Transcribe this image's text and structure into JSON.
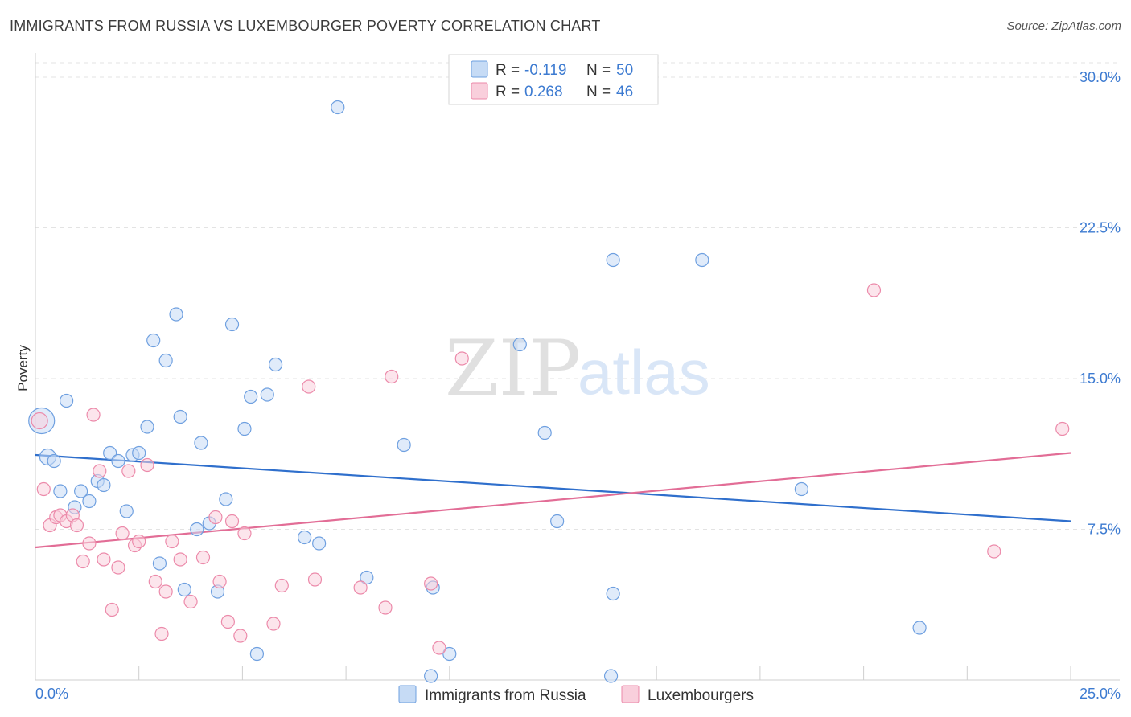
{
  "title": "IMMIGRANTS FROM RUSSIA VS LUXEMBOURGER POVERTY CORRELATION CHART",
  "source": "Source: ZipAtlas.com",
  "watermark": {
    "zip": "ZIP",
    "atlas": "atlas"
  },
  "legend": {
    "r_label": "R =",
    "n_label": "N =",
    "rows": [
      {
        "r": "-0.119",
        "n": "50",
        "color": "#a9c8f0"
      },
      {
        "r": "0.268",
        "n": "46",
        "color": "#f7b9cb"
      }
    ]
  },
  "bottom_legend": [
    {
      "label": "Immigrants from Russia",
      "color": "#a9c8f0"
    },
    {
      "label": "Luxembourgers",
      "color": "#f7b9cb"
    }
  ],
  "chart_data": {
    "type": "scatter",
    "title": "IMMIGRANTS FROM RUSSIA VS LUXEMBOURGER POVERTY CORRELATION CHART",
    "xlabel": "",
    "ylabel": "Poverty",
    "xlim": [
      0,
      25
    ],
    "ylim": [
      0,
      30.5
    ],
    "x_tick_labels": [
      "0.0%",
      "25.0%"
    ],
    "y_ticks": [
      7.5,
      15.0,
      22.5,
      30.0
    ],
    "y_tick_labels": [
      "7.5%",
      "15.0%",
      "22.5%",
      "30.0%"
    ],
    "grid": true,
    "legend_position": "top-center",
    "series": [
      {
        "name": "Immigrants from Russia",
        "color": "#6fa0e0",
        "fill": "#c6dbf5",
        "trend": {
          "x": [
            0,
            25
          ],
          "y": [
            11.2,
            7.9
          ],
          "color": "#2f6fcc"
        },
        "points": [
          [
            0.15,
            12.9,
            16
          ],
          [
            0.3,
            11.1,
            10
          ],
          [
            0.45,
            10.9,
            8
          ],
          [
            0.75,
            13.9,
            8
          ],
          [
            0.6,
            9.4,
            8
          ],
          [
            0.95,
            8.6,
            8
          ],
          [
            1.1,
            9.4,
            8
          ],
          [
            1.3,
            8.9,
            8
          ],
          [
            1.5,
            9.9,
            8
          ],
          [
            1.65,
            9.7,
            8
          ],
          [
            1.8,
            11.3,
            8
          ],
          [
            2.0,
            10.9,
            8
          ],
          [
            2.2,
            8.4,
            8
          ],
          [
            2.35,
            11.2,
            8
          ],
          [
            2.5,
            11.3,
            8
          ],
          [
            2.7,
            12.6,
            8
          ],
          [
            2.85,
            16.9,
            8
          ],
          [
            3.0,
            5.8,
            8
          ],
          [
            3.15,
            15.9,
            8
          ],
          [
            3.4,
            18.2,
            8
          ],
          [
            3.5,
            13.1,
            8
          ],
          [
            3.6,
            4.5,
            8
          ],
          [
            3.9,
            7.5,
            8
          ],
          [
            4.0,
            11.8,
            8
          ],
          [
            4.2,
            7.8,
            8
          ],
          [
            4.4,
            4.4,
            8
          ],
          [
            4.6,
            9.0,
            8
          ],
          [
            4.75,
            17.7,
            8
          ],
          [
            5.05,
            12.5,
            8
          ],
          [
            5.2,
            14.1,
            8
          ],
          [
            5.35,
            1.3,
            8
          ],
          [
            5.6,
            14.2,
            8
          ],
          [
            5.8,
            15.7,
            8
          ],
          [
            6.5,
            7.1,
            8
          ],
          [
            6.85,
            6.8,
            8
          ],
          [
            7.3,
            28.5,
            8
          ],
          [
            8.0,
            5.1,
            8
          ],
          [
            8.9,
            11.7,
            8
          ],
          [
            9.55,
            0.2,
            8
          ],
          [
            9.6,
            4.6,
            8
          ],
          [
            10.0,
            1.3,
            8
          ],
          [
            11.7,
            16.7,
            8
          ],
          [
            12.3,
            12.3,
            8
          ],
          [
            12.6,
            7.9,
            8
          ],
          [
            13.9,
            0.2,
            8
          ],
          [
            13.95,
            4.3,
            8
          ],
          [
            13.95,
            20.9,
            8
          ],
          [
            16.1,
            20.9,
            8
          ],
          [
            18.5,
            9.5,
            8
          ],
          [
            21.35,
            2.6,
            8
          ]
        ]
      },
      {
        "name": "Luxembourgers",
        "color": "#ec8aaa",
        "fill": "#f9cfdc",
        "trend": {
          "x": [
            0,
            25
          ],
          "y": [
            6.6,
            11.3
          ],
          "color": "#e26d96"
        },
        "points": [
          [
            0.1,
            12.9,
            10
          ],
          [
            0.2,
            9.5,
            8
          ],
          [
            0.35,
            7.7,
            8
          ],
          [
            0.5,
            8.1,
            8
          ],
          [
            0.6,
            8.2,
            8
          ],
          [
            0.75,
            7.9,
            8
          ],
          [
            0.9,
            8.2,
            8
          ],
          [
            1.0,
            7.7,
            8
          ],
          [
            1.15,
            5.9,
            8
          ],
          [
            1.3,
            6.8,
            8
          ],
          [
            1.4,
            13.2,
            8
          ],
          [
            1.55,
            10.4,
            8
          ],
          [
            1.65,
            6.0,
            8
          ],
          [
            1.85,
            3.5,
            8
          ],
          [
            2.0,
            5.6,
            8
          ],
          [
            2.1,
            7.3,
            8
          ],
          [
            2.25,
            10.4,
            8
          ],
          [
            2.4,
            6.7,
            8
          ],
          [
            2.5,
            6.9,
            8
          ],
          [
            2.7,
            10.7,
            8
          ],
          [
            2.9,
            4.9,
            8
          ],
          [
            3.05,
            2.3,
            8
          ],
          [
            3.15,
            4.4,
            8
          ],
          [
            3.3,
            6.9,
            8
          ],
          [
            3.5,
            6.0,
            8
          ],
          [
            3.75,
            3.9,
            8
          ],
          [
            4.05,
            6.1,
            8
          ],
          [
            4.35,
            8.1,
            8
          ],
          [
            4.45,
            4.9,
            8
          ],
          [
            4.65,
            2.9,
            8
          ],
          [
            4.75,
            7.9,
            8
          ],
          [
            4.95,
            2.2,
            8
          ],
          [
            5.05,
            7.3,
            8
          ],
          [
            5.75,
            2.8,
            8
          ],
          [
            5.95,
            4.7,
            8
          ],
          [
            6.6,
            14.6,
            8
          ],
          [
            6.75,
            5.0,
            8
          ],
          [
            7.85,
            4.6,
            8
          ],
          [
            8.45,
            3.6,
            8
          ],
          [
            8.6,
            15.1,
            8
          ],
          [
            9.55,
            4.8,
            8
          ],
          [
            9.75,
            1.6,
            8
          ],
          [
            10.3,
            16.0,
            8
          ],
          [
            20.25,
            19.4,
            8
          ],
          [
            23.15,
            6.4,
            8
          ],
          [
            24.8,
            12.5,
            8
          ]
        ]
      }
    ]
  }
}
